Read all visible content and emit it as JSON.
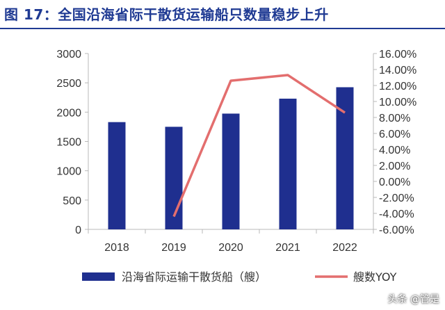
{
  "title": "图 17：全国沿海省际干散货运输船只数量稳步上升",
  "watermark": "头条 @管是",
  "colors": {
    "bar": "#1f2f8f",
    "line": "#e36e6e",
    "axis": "#b8b8b8",
    "title": "#1f3a93",
    "text": "#333333"
  },
  "chart_data": {
    "type": "bar",
    "categories": [
      "2018",
      "2019",
      "2020",
      "2021",
      "2022"
    ],
    "series": [
      {
        "name": "沿海省际运输干散货船（艘）",
        "type": "bar",
        "axis": "left",
        "values": [
          1830,
          1750,
          1975,
          2230,
          2425
        ]
      },
      {
        "name": "艘数YOY",
        "type": "line",
        "axis": "right",
        "x": [
          "2019",
          "2020",
          "2021",
          "2022"
        ],
        "values": [
          -4.4,
          12.6,
          13.3,
          8.6
        ]
      }
    ],
    "y_left": {
      "min": 0,
      "max": 3000,
      "ticks": [
        "0",
        "500",
        "1000",
        "1500",
        "2000",
        "2500",
        "3000"
      ]
    },
    "y_right": {
      "min": -6,
      "max": 16,
      "ticks": [
        "-6.00%",
        "-4.00%",
        "-2.00%",
        "0.00%",
        "2.00%",
        "4.00%",
        "6.00%",
        "8.00%",
        "10.00%",
        "12.00%",
        "14.00%",
        "16.00%"
      ]
    },
    "legend_position": "bottom",
    "grid": false
  }
}
